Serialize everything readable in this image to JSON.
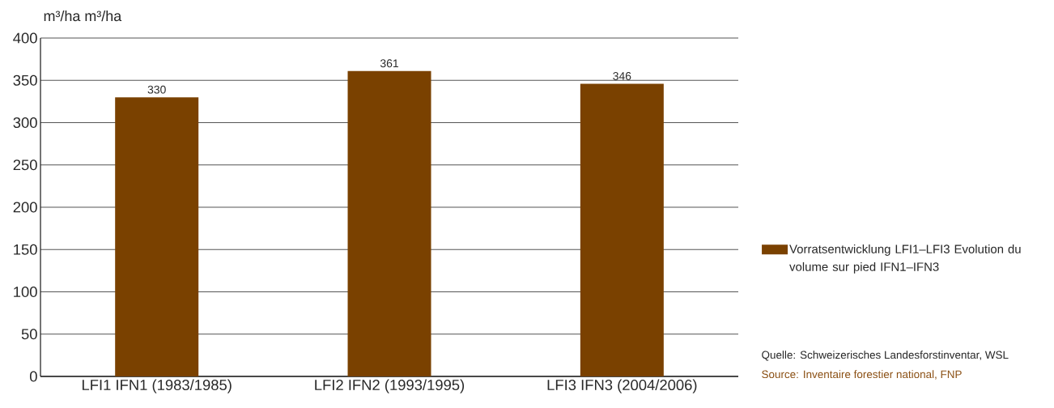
{
  "chart_data": {
    "type": "bar",
    "ylabel": "m³/ha  m³/ha",
    "categories": [
      "LFI1 IFN1 (1983/1985)",
      "LFI2 IFN2 (1993/1995)",
      "LFI3 IFN3 (2004/2006)"
    ],
    "series": [
      {
        "name": "Vorratsentwicklung LFI1–LFI3 Evolution du volume sur pied IFN1–IFN3",
        "color": "#7a4100",
        "values": [
          330,
          361,
          346
        ]
      }
    ],
    "ylim": [
      0,
      400
    ],
    "yticks": [
      0,
      50,
      100,
      150,
      200,
      250,
      300,
      350,
      400
    ],
    "grid": "y",
    "legend": "right",
    "data_labels": true,
    "annotations": [
      "Quelle: Schweizerisches Landesforstinventar, WSL",
      "Source: Inventaire forestier national, FNP"
    ]
  }
}
